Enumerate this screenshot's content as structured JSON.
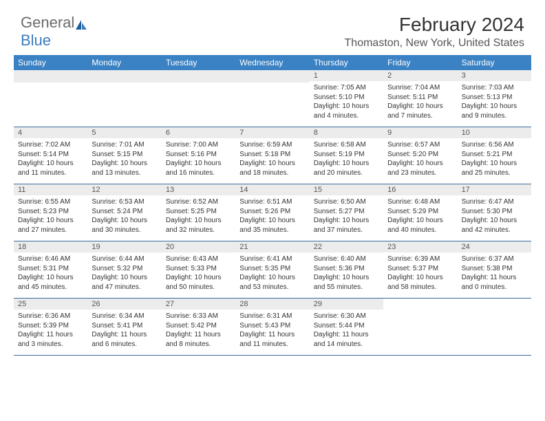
{
  "logo": {
    "text1": "General",
    "text2": "Blue"
  },
  "header": {
    "title": "February 2024",
    "location": "Thomaston, New York, United States"
  },
  "colors": {
    "header_bg": "#3b82c4",
    "header_text": "#ffffff",
    "day_number_bg": "#ececec",
    "border": "#3b6a9a",
    "logo_gray": "#6b6b6b",
    "logo_blue": "#3b7bbf"
  },
  "weekdays": [
    "Sunday",
    "Monday",
    "Tuesday",
    "Wednesday",
    "Thursday",
    "Friday",
    "Saturday"
  ],
  "weeks": [
    [
      {
        "num": "",
        "sunrise": "",
        "sunset": "",
        "daylight": ""
      },
      {
        "num": "",
        "sunrise": "",
        "sunset": "",
        "daylight": ""
      },
      {
        "num": "",
        "sunrise": "",
        "sunset": "",
        "daylight": ""
      },
      {
        "num": "",
        "sunrise": "",
        "sunset": "",
        "daylight": ""
      },
      {
        "num": "1",
        "sunrise": "Sunrise: 7:05 AM",
        "sunset": "Sunset: 5:10 PM",
        "daylight": "Daylight: 10 hours and 4 minutes."
      },
      {
        "num": "2",
        "sunrise": "Sunrise: 7:04 AM",
        "sunset": "Sunset: 5:11 PM",
        "daylight": "Daylight: 10 hours and 7 minutes."
      },
      {
        "num": "3",
        "sunrise": "Sunrise: 7:03 AM",
        "sunset": "Sunset: 5:13 PM",
        "daylight": "Daylight: 10 hours and 9 minutes."
      }
    ],
    [
      {
        "num": "4",
        "sunrise": "Sunrise: 7:02 AM",
        "sunset": "Sunset: 5:14 PM",
        "daylight": "Daylight: 10 hours and 11 minutes."
      },
      {
        "num": "5",
        "sunrise": "Sunrise: 7:01 AM",
        "sunset": "Sunset: 5:15 PM",
        "daylight": "Daylight: 10 hours and 13 minutes."
      },
      {
        "num": "6",
        "sunrise": "Sunrise: 7:00 AM",
        "sunset": "Sunset: 5:16 PM",
        "daylight": "Daylight: 10 hours and 16 minutes."
      },
      {
        "num": "7",
        "sunrise": "Sunrise: 6:59 AM",
        "sunset": "Sunset: 5:18 PM",
        "daylight": "Daylight: 10 hours and 18 minutes."
      },
      {
        "num": "8",
        "sunrise": "Sunrise: 6:58 AM",
        "sunset": "Sunset: 5:19 PM",
        "daylight": "Daylight: 10 hours and 20 minutes."
      },
      {
        "num": "9",
        "sunrise": "Sunrise: 6:57 AM",
        "sunset": "Sunset: 5:20 PM",
        "daylight": "Daylight: 10 hours and 23 minutes."
      },
      {
        "num": "10",
        "sunrise": "Sunrise: 6:56 AM",
        "sunset": "Sunset: 5:21 PM",
        "daylight": "Daylight: 10 hours and 25 minutes."
      }
    ],
    [
      {
        "num": "11",
        "sunrise": "Sunrise: 6:55 AM",
        "sunset": "Sunset: 5:23 PM",
        "daylight": "Daylight: 10 hours and 27 minutes."
      },
      {
        "num": "12",
        "sunrise": "Sunrise: 6:53 AM",
        "sunset": "Sunset: 5:24 PM",
        "daylight": "Daylight: 10 hours and 30 minutes."
      },
      {
        "num": "13",
        "sunrise": "Sunrise: 6:52 AM",
        "sunset": "Sunset: 5:25 PM",
        "daylight": "Daylight: 10 hours and 32 minutes."
      },
      {
        "num": "14",
        "sunrise": "Sunrise: 6:51 AM",
        "sunset": "Sunset: 5:26 PM",
        "daylight": "Daylight: 10 hours and 35 minutes."
      },
      {
        "num": "15",
        "sunrise": "Sunrise: 6:50 AM",
        "sunset": "Sunset: 5:27 PM",
        "daylight": "Daylight: 10 hours and 37 minutes."
      },
      {
        "num": "16",
        "sunrise": "Sunrise: 6:48 AM",
        "sunset": "Sunset: 5:29 PM",
        "daylight": "Daylight: 10 hours and 40 minutes."
      },
      {
        "num": "17",
        "sunrise": "Sunrise: 6:47 AM",
        "sunset": "Sunset: 5:30 PM",
        "daylight": "Daylight: 10 hours and 42 minutes."
      }
    ],
    [
      {
        "num": "18",
        "sunrise": "Sunrise: 6:46 AM",
        "sunset": "Sunset: 5:31 PM",
        "daylight": "Daylight: 10 hours and 45 minutes."
      },
      {
        "num": "19",
        "sunrise": "Sunrise: 6:44 AM",
        "sunset": "Sunset: 5:32 PM",
        "daylight": "Daylight: 10 hours and 47 minutes."
      },
      {
        "num": "20",
        "sunrise": "Sunrise: 6:43 AM",
        "sunset": "Sunset: 5:33 PM",
        "daylight": "Daylight: 10 hours and 50 minutes."
      },
      {
        "num": "21",
        "sunrise": "Sunrise: 6:41 AM",
        "sunset": "Sunset: 5:35 PM",
        "daylight": "Daylight: 10 hours and 53 minutes."
      },
      {
        "num": "22",
        "sunrise": "Sunrise: 6:40 AM",
        "sunset": "Sunset: 5:36 PM",
        "daylight": "Daylight: 10 hours and 55 minutes."
      },
      {
        "num": "23",
        "sunrise": "Sunrise: 6:39 AM",
        "sunset": "Sunset: 5:37 PM",
        "daylight": "Daylight: 10 hours and 58 minutes."
      },
      {
        "num": "24",
        "sunrise": "Sunrise: 6:37 AM",
        "sunset": "Sunset: 5:38 PM",
        "daylight": "Daylight: 11 hours and 0 minutes."
      }
    ],
    [
      {
        "num": "25",
        "sunrise": "Sunrise: 6:36 AM",
        "sunset": "Sunset: 5:39 PM",
        "daylight": "Daylight: 11 hours and 3 minutes."
      },
      {
        "num": "26",
        "sunrise": "Sunrise: 6:34 AM",
        "sunset": "Sunset: 5:41 PM",
        "daylight": "Daylight: 11 hours and 6 minutes."
      },
      {
        "num": "27",
        "sunrise": "Sunrise: 6:33 AM",
        "sunset": "Sunset: 5:42 PM",
        "daylight": "Daylight: 11 hours and 8 minutes."
      },
      {
        "num": "28",
        "sunrise": "Sunrise: 6:31 AM",
        "sunset": "Sunset: 5:43 PM",
        "daylight": "Daylight: 11 hours and 11 minutes."
      },
      {
        "num": "29",
        "sunrise": "Sunrise: 6:30 AM",
        "sunset": "Sunset: 5:44 PM",
        "daylight": "Daylight: 11 hours and 14 minutes."
      },
      {
        "num": "",
        "sunrise": "",
        "sunset": "",
        "daylight": ""
      },
      {
        "num": "",
        "sunrise": "",
        "sunset": "",
        "daylight": ""
      }
    ]
  ]
}
